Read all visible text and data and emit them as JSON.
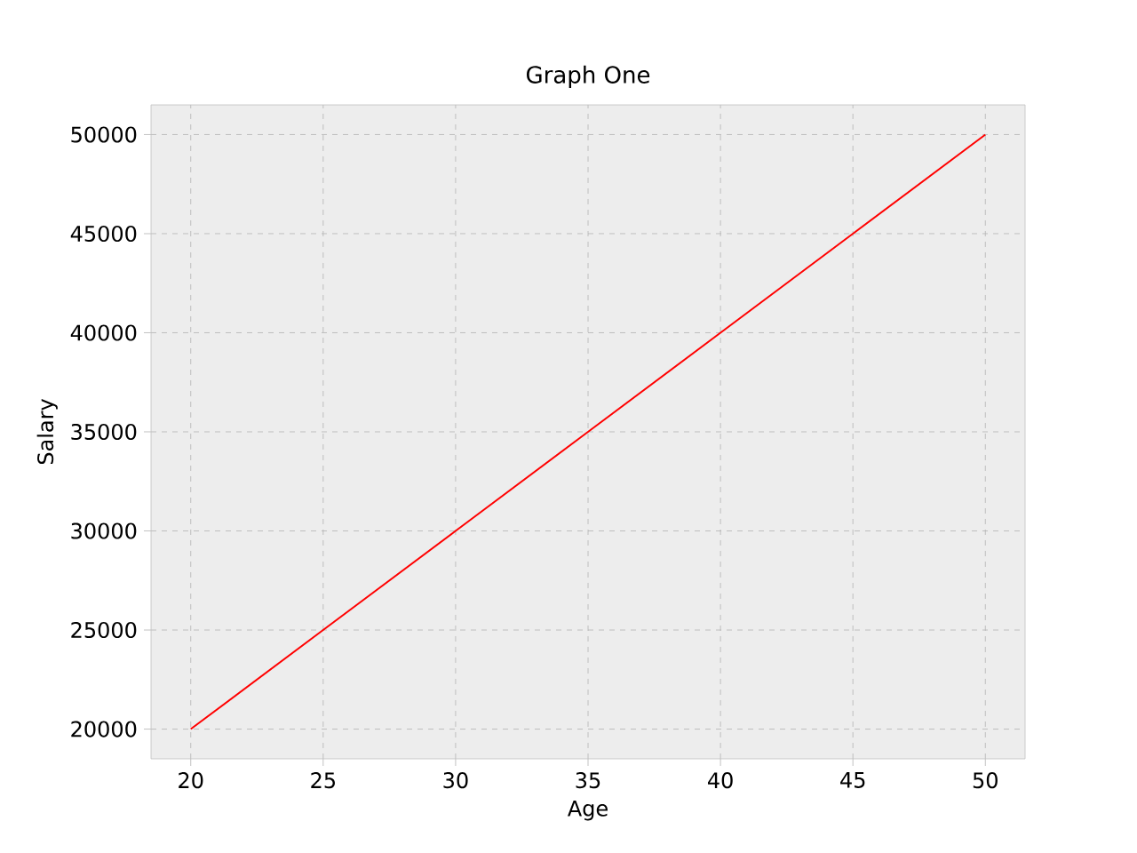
{
  "chart_data": {
    "type": "line",
    "title": "Graph One",
    "xlabel": "Age",
    "ylabel": "Salary",
    "x": [
      20,
      25,
      30,
      35,
      40,
      45,
      50
    ],
    "series": [
      {
        "color": "#ff0000",
        "values": [
          20000,
          25000,
          30000,
          35000,
          40000,
          45000,
          50000
        ]
      }
    ],
    "xlim": [
      18.5,
      51.5
    ],
    "ylim": [
      18500,
      51500
    ],
    "xticks": [
      20,
      25,
      30,
      35,
      40,
      45,
      50
    ],
    "yticks": [
      20000,
      25000,
      30000,
      35000,
      40000,
      45000,
      50000
    ],
    "grid": true,
    "line_style": "solid",
    "marker": "none"
  }
}
